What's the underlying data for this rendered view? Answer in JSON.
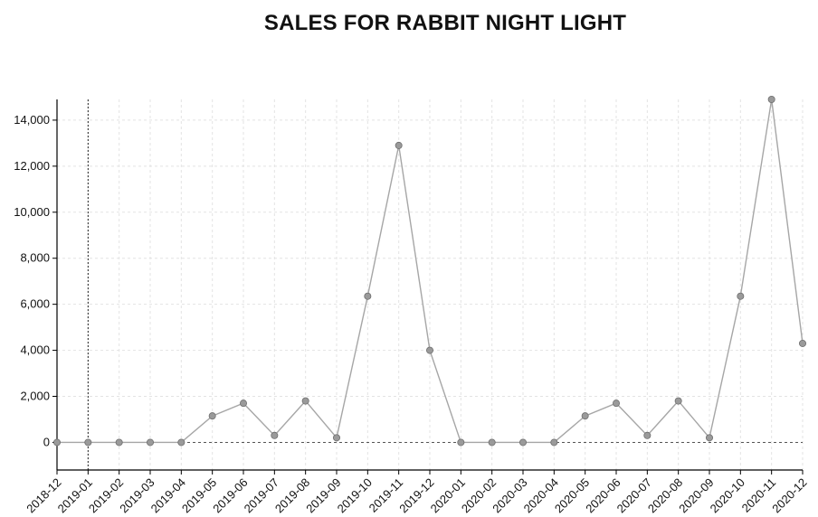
{
  "chart_data": {
    "type": "line",
    "title": "SALES FOR RABBIT NIGHT LIGHT",
    "xlabel": "",
    "ylabel": "",
    "categories": [
      "2018-12",
      "2019-01",
      "2019-02",
      "2019-03",
      "2019-04",
      "2019-05",
      "2019-06",
      "2019-07",
      "2019-08",
      "2019-09",
      "2019-10",
      "2019-11",
      "2019-12",
      "2020-01",
      "2020-02",
      "2020-03",
      "2020-04",
      "2020-05",
      "2020-06",
      "2020-07",
      "2020-08",
      "2020-09",
      "2020-10",
      "2020-11",
      "2020-12"
    ],
    "values": [
      0,
      0,
      0,
      0,
      0,
      1150,
      1700,
      300,
      1800,
      200,
      6350,
      12900,
      4000,
      0,
      0,
      0,
      0,
      1150,
      1700,
      300,
      1800,
      200,
      6350,
      14900,
      4300
    ],
    "ylim": [
      -1200,
      14900
    ],
    "yticks": [
      0,
      2000,
      4000,
      6000,
      8000,
      10000,
      12000,
      14000
    ],
    "ytick_labels": [
      "0",
      "2,000",
      "4,000",
      "6,000",
      "8,000",
      "10,000",
      "12,000",
      "14,000"
    ],
    "grid": true,
    "legend": "none",
    "marked_category": "2019-01",
    "colors": {
      "line": "#a6a6a6",
      "marker_fill": "#9a9a9a",
      "marker_stroke": "#6e6e6e",
      "grid": "#e3e3e3",
      "axis": "#000000",
      "zero_line": "#555555"
    }
  }
}
